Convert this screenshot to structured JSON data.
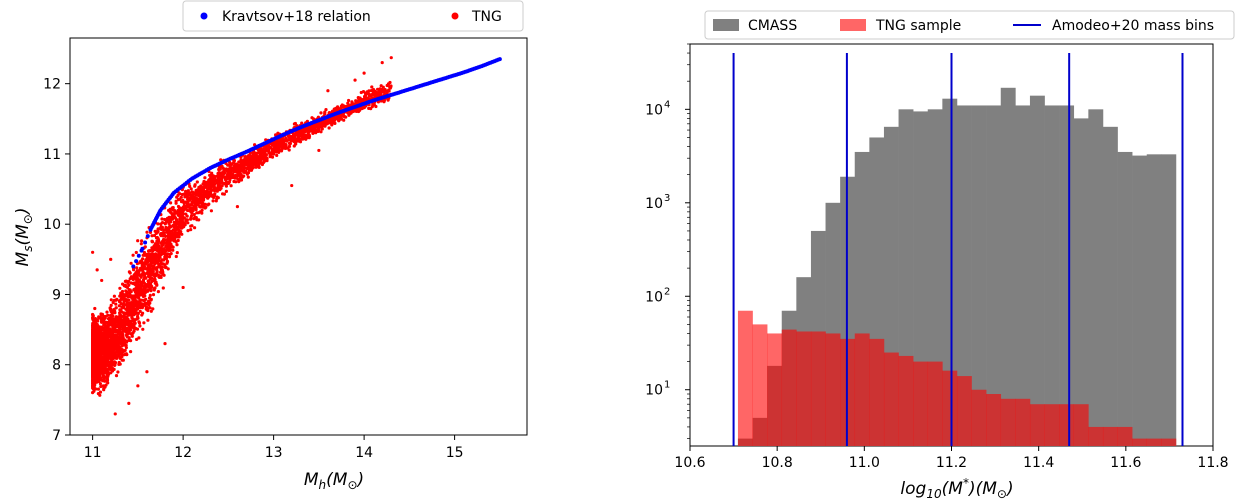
{
  "chart_data": [
    {
      "type": "scatter",
      "xlabel": "M_h(M_⊙)",
      "ylabel": "M_s(M_⊙)",
      "xlim": [
        10.75,
        15.8
      ],
      "ylim": [
        7.0,
        12.65
      ],
      "xticks": [
        "11",
        "12",
        "13",
        "14",
        "15"
      ],
      "yticks": [
        "7",
        "8",
        "9",
        "10",
        "11",
        "12"
      ],
      "legend_position": "top-center-outside",
      "series": [
        {
          "name": "Kravtsov+18 relation",
          "color": "#0000ff",
          "points": [
            [
              11.45,
              9.4
            ],
            [
              11.55,
              9.65
            ],
            [
              11.65,
              9.95
            ],
            [
              11.75,
              10.2
            ],
            [
              11.9,
              10.45
            ],
            [
              12.1,
              10.65
            ],
            [
              12.3,
              10.8
            ],
            [
              12.5,
              10.92
            ],
            [
              12.7,
              11.03
            ],
            [
              12.9,
              11.15
            ],
            [
              13.1,
              11.27
            ],
            [
              13.3,
              11.38
            ],
            [
              13.5,
              11.48
            ],
            [
              13.7,
              11.58
            ],
            [
              13.9,
              11.67
            ],
            [
              14.1,
              11.76
            ],
            [
              14.3,
              11.84
            ],
            [
              14.5,
              11.92
            ],
            [
              14.7,
              12.0
            ],
            [
              14.9,
              12.08
            ],
            [
              15.1,
              12.16
            ],
            [
              15.3,
              12.25
            ],
            [
              15.5,
              12.35
            ]
          ]
        },
        {
          "name": "TNG",
          "color": "#ff0000",
          "band": [
            [
              11.0,
              7.5,
              8.8
            ],
            [
              11.1,
              7.4,
              8.9
            ],
            [
              11.2,
              7.6,
              9.0
            ],
            [
              11.3,
              7.7,
              9.3
            ],
            [
              11.4,
              8.0,
              9.55
            ],
            [
              11.5,
              8.2,
              9.8
            ],
            [
              11.6,
              8.5,
              10.0
            ],
            [
              11.7,
              8.8,
              10.2
            ],
            [
              11.8,
              9.1,
              10.35
            ],
            [
              11.9,
              9.4,
              10.5
            ],
            [
              12.0,
              9.7,
              10.65
            ],
            [
              12.2,
              10.0,
              10.8
            ],
            [
              12.4,
              10.3,
              10.95
            ],
            [
              12.6,
              10.5,
              11.05
            ],
            [
              12.8,
              10.7,
              11.2
            ],
            [
              13.0,
              10.9,
              11.3
            ],
            [
              13.2,
              11.05,
              11.45
            ],
            [
              13.5,
              11.25,
              11.6
            ],
            [
              13.8,
              11.45,
              11.8
            ],
            [
              14.1,
              11.6,
              12.0
            ],
            [
              14.3,
              11.7,
              12.1
            ]
          ],
          "outliers": [
            [
              11.0,
              9.6
            ],
            [
              11.05,
              9.35
            ],
            [
              11.1,
              9.2
            ],
            [
              11.25,
              7.3
            ],
            [
              11.4,
              7.45
            ],
            [
              11.2,
              9.5
            ],
            [
              11.5,
              7.7
            ],
            [
              11.6,
              7.9
            ],
            [
              11.8,
              8.3
            ],
            [
              12.0,
              9.1
            ],
            [
              13.6,
              11.9
            ],
            [
              13.9,
              12.05
            ],
            [
              14.0,
              12.15
            ],
            [
              14.2,
              12.3
            ],
            [
              14.3,
              12.37
            ],
            [
              13.2,
              10.55
            ],
            [
              12.6,
              10.25
            ],
            [
              13.5,
              11.05
            ]
          ]
        }
      ]
    },
    {
      "type": "bar",
      "subtype": "histogram",
      "xlabel": "log_10(M^*)(M_⊙)",
      "xlim": [
        10.6,
        11.8
      ],
      "ylim_log": [
        2.5,
        50000
      ],
      "yscale": "log",
      "xticks": [
        "10.6",
        "10.8",
        "11.0",
        "11.2",
        "11.4",
        "11.6",
        "11.8"
      ],
      "yticks": [
        {
          "base": "10",
          "exp": "1",
          "value": 10
        },
        {
          "base": "10",
          "exp": "2",
          "value": 100
        },
        {
          "base": "10",
          "exp": "3",
          "value": 1000
        },
        {
          "base": "10",
          "exp": "4",
          "value": 10000
        }
      ],
      "legend_position": "top-center-outside",
      "bin_edges": [
        10.71,
        10.7435,
        10.777,
        10.8105,
        10.844,
        10.8775,
        10.911,
        10.9445,
        10.978,
        11.0115,
        11.045,
        11.0785,
        11.112,
        11.1455,
        11.179,
        11.2125,
        11.246,
        11.2795,
        11.313,
        11.3465,
        11.38,
        11.4135,
        11.447,
        11.4805,
        11.514,
        11.5475,
        11.581,
        11.6145,
        11.648,
        11.6815,
        11.715
      ],
      "series": [
        {
          "name": "CMASS",
          "color": "#808080",
          "values": [
            3,
            5,
            18,
            70,
            160,
            500,
            1000,
            1900,
            3500,
            5000,
            6500,
            10000,
            9500,
            10000,
            13000,
            11000,
            11000,
            11000,
            17000,
            11000,
            14000,
            11000,
            11000,
            8000,
            10000,
            6500,
            3500,
            3200,
            3300,
            3300
          ]
        },
        {
          "name": "TNG sample",
          "color": "#ff0000",
          "alpha": 0.6,
          "values": [
            70,
            50,
            40,
            44,
            42,
            42,
            40,
            35,
            40,
            35,
            25,
            23,
            20,
            20,
            16,
            14,
            10,
            9,
            8,
            8,
            7,
            7,
            7,
            7,
            4,
            4,
            4,
            3,
            3,
            3
          ]
        },
        {
          "name": "Amodeo+20 mass bins",
          "color": "#0000cc",
          "lines_x": [
            10.7,
            10.96,
            11.2,
            11.47,
            11.73
          ],
          "line_top": 40000
        }
      ]
    }
  ]
}
